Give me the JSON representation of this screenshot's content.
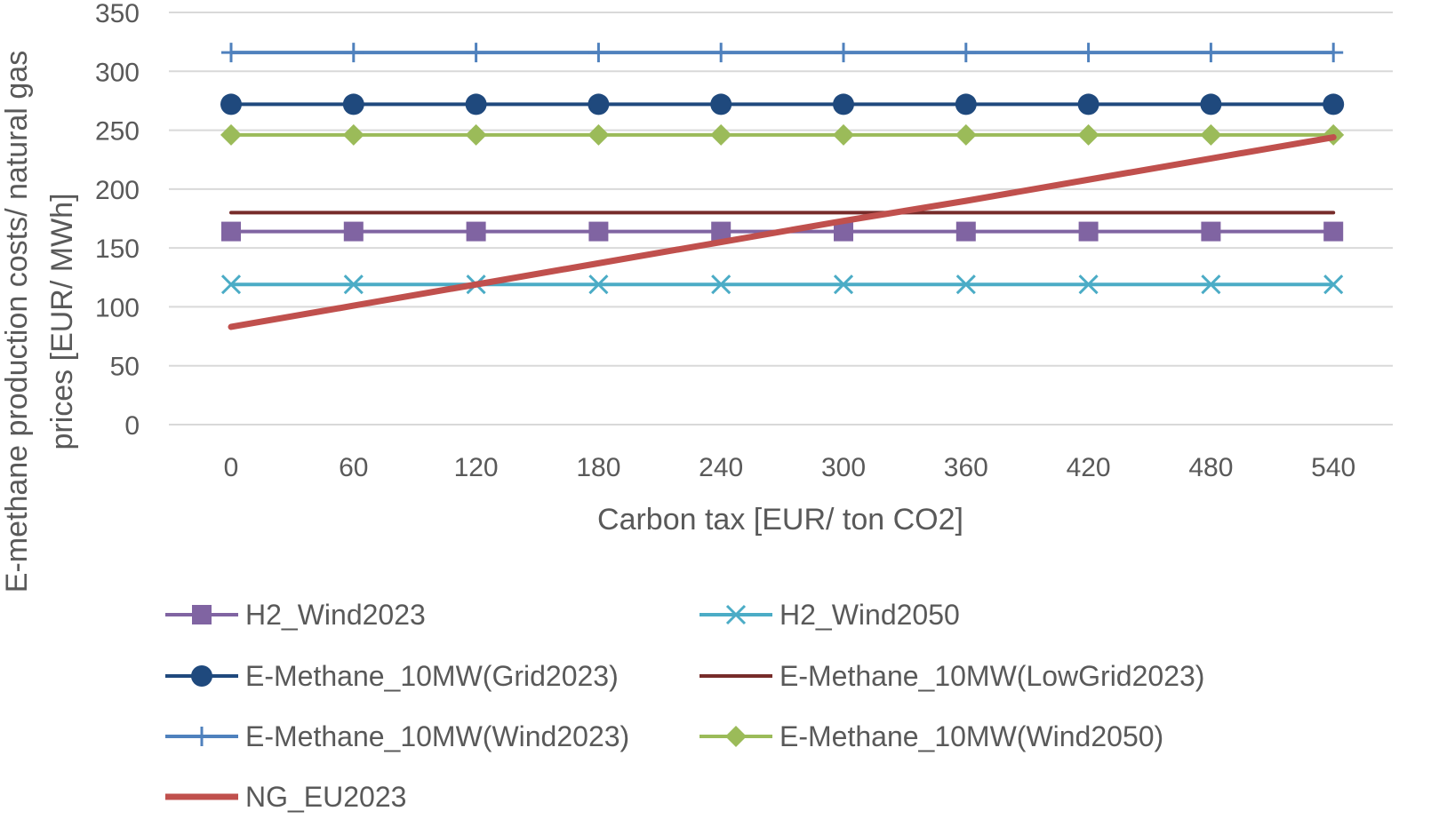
{
  "chart_data": {
    "type": "line",
    "title": "",
    "xlabel": "Carbon tax [EUR/ ton CO2]",
    "ylabel_lines": [
      "E-methane production costs/ natural gas",
      "prices [EUR/ MWh]"
    ],
    "x": [
      0,
      60,
      120,
      180,
      240,
      300,
      360,
      420,
      480,
      540
    ],
    "x_tick_labels": [
      "0",
      "60",
      "120",
      "180",
      "240",
      "300",
      "360",
      "420",
      "480",
      "540"
    ],
    "y_ticks": [
      0,
      50,
      100,
      150,
      200,
      250,
      300,
      350
    ],
    "y_tick_labels": [
      "0",
      "50",
      "100",
      "150",
      "200",
      "250",
      "300",
      "350"
    ],
    "ylim": [
      0,
      350
    ],
    "grid": "horizontal",
    "legend_position": "bottom",
    "series": [
      {
        "name": "H2_Wind2023",
        "color": "#8064a2",
        "marker": "square",
        "values": [
          164,
          164,
          164,
          164,
          164,
          164,
          164,
          164,
          164,
          164
        ]
      },
      {
        "name": "H2_Wind2050",
        "color": "#4bacc6",
        "marker": "x",
        "values": [
          119,
          119,
          119,
          119,
          119,
          119,
          119,
          119,
          119,
          119
        ]
      },
      {
        "name": "E-Methane_10MW(Grid2023)",
        "color": "#1f497d",
        "marker": "circle",
        "values": [
          272,
          272,
          272,
          272,
          272,
          272,
          272,
          272,
          272,
          272
        ]
      },
      {
        "name": "E-Methane_10MW(LowGrid2023)",
        "color": "#772c2a",
        "marker": "none",
        "values": [
          180,
          180,
          180,
          180,
          180,
          180,
          180,
          180,
          180,
          180
        ]
      },
      {
        "name": "E-Methane_10MW(Wind2023)",
        "color": "#4f81bd",
        "marker": "plus",
        "values": [
          316,
          316,
          316,
          316,
          316,
          316,
          316,
          316,
          316,
          316
        ]
      },
      {
        "name": "E-Methane_10MW(Wind2050)",
        "color": "#9bbb59",
        "marker": "diamond",
        "values": [
          246,
          246,
          246,
          246,
          246,
          246,
          246,
          246,
          246,
          246
        ]
      },
      {
        "name": "NG_EU2023",
        "color": "#c0504d",
        "marker": "none",
        "thick": true,
        "values": [
          83,
          101,
          119,
          137,
          155,
          173,
          190,
          208,
          226,
          244
        ]
      }
    ]
  }
}
